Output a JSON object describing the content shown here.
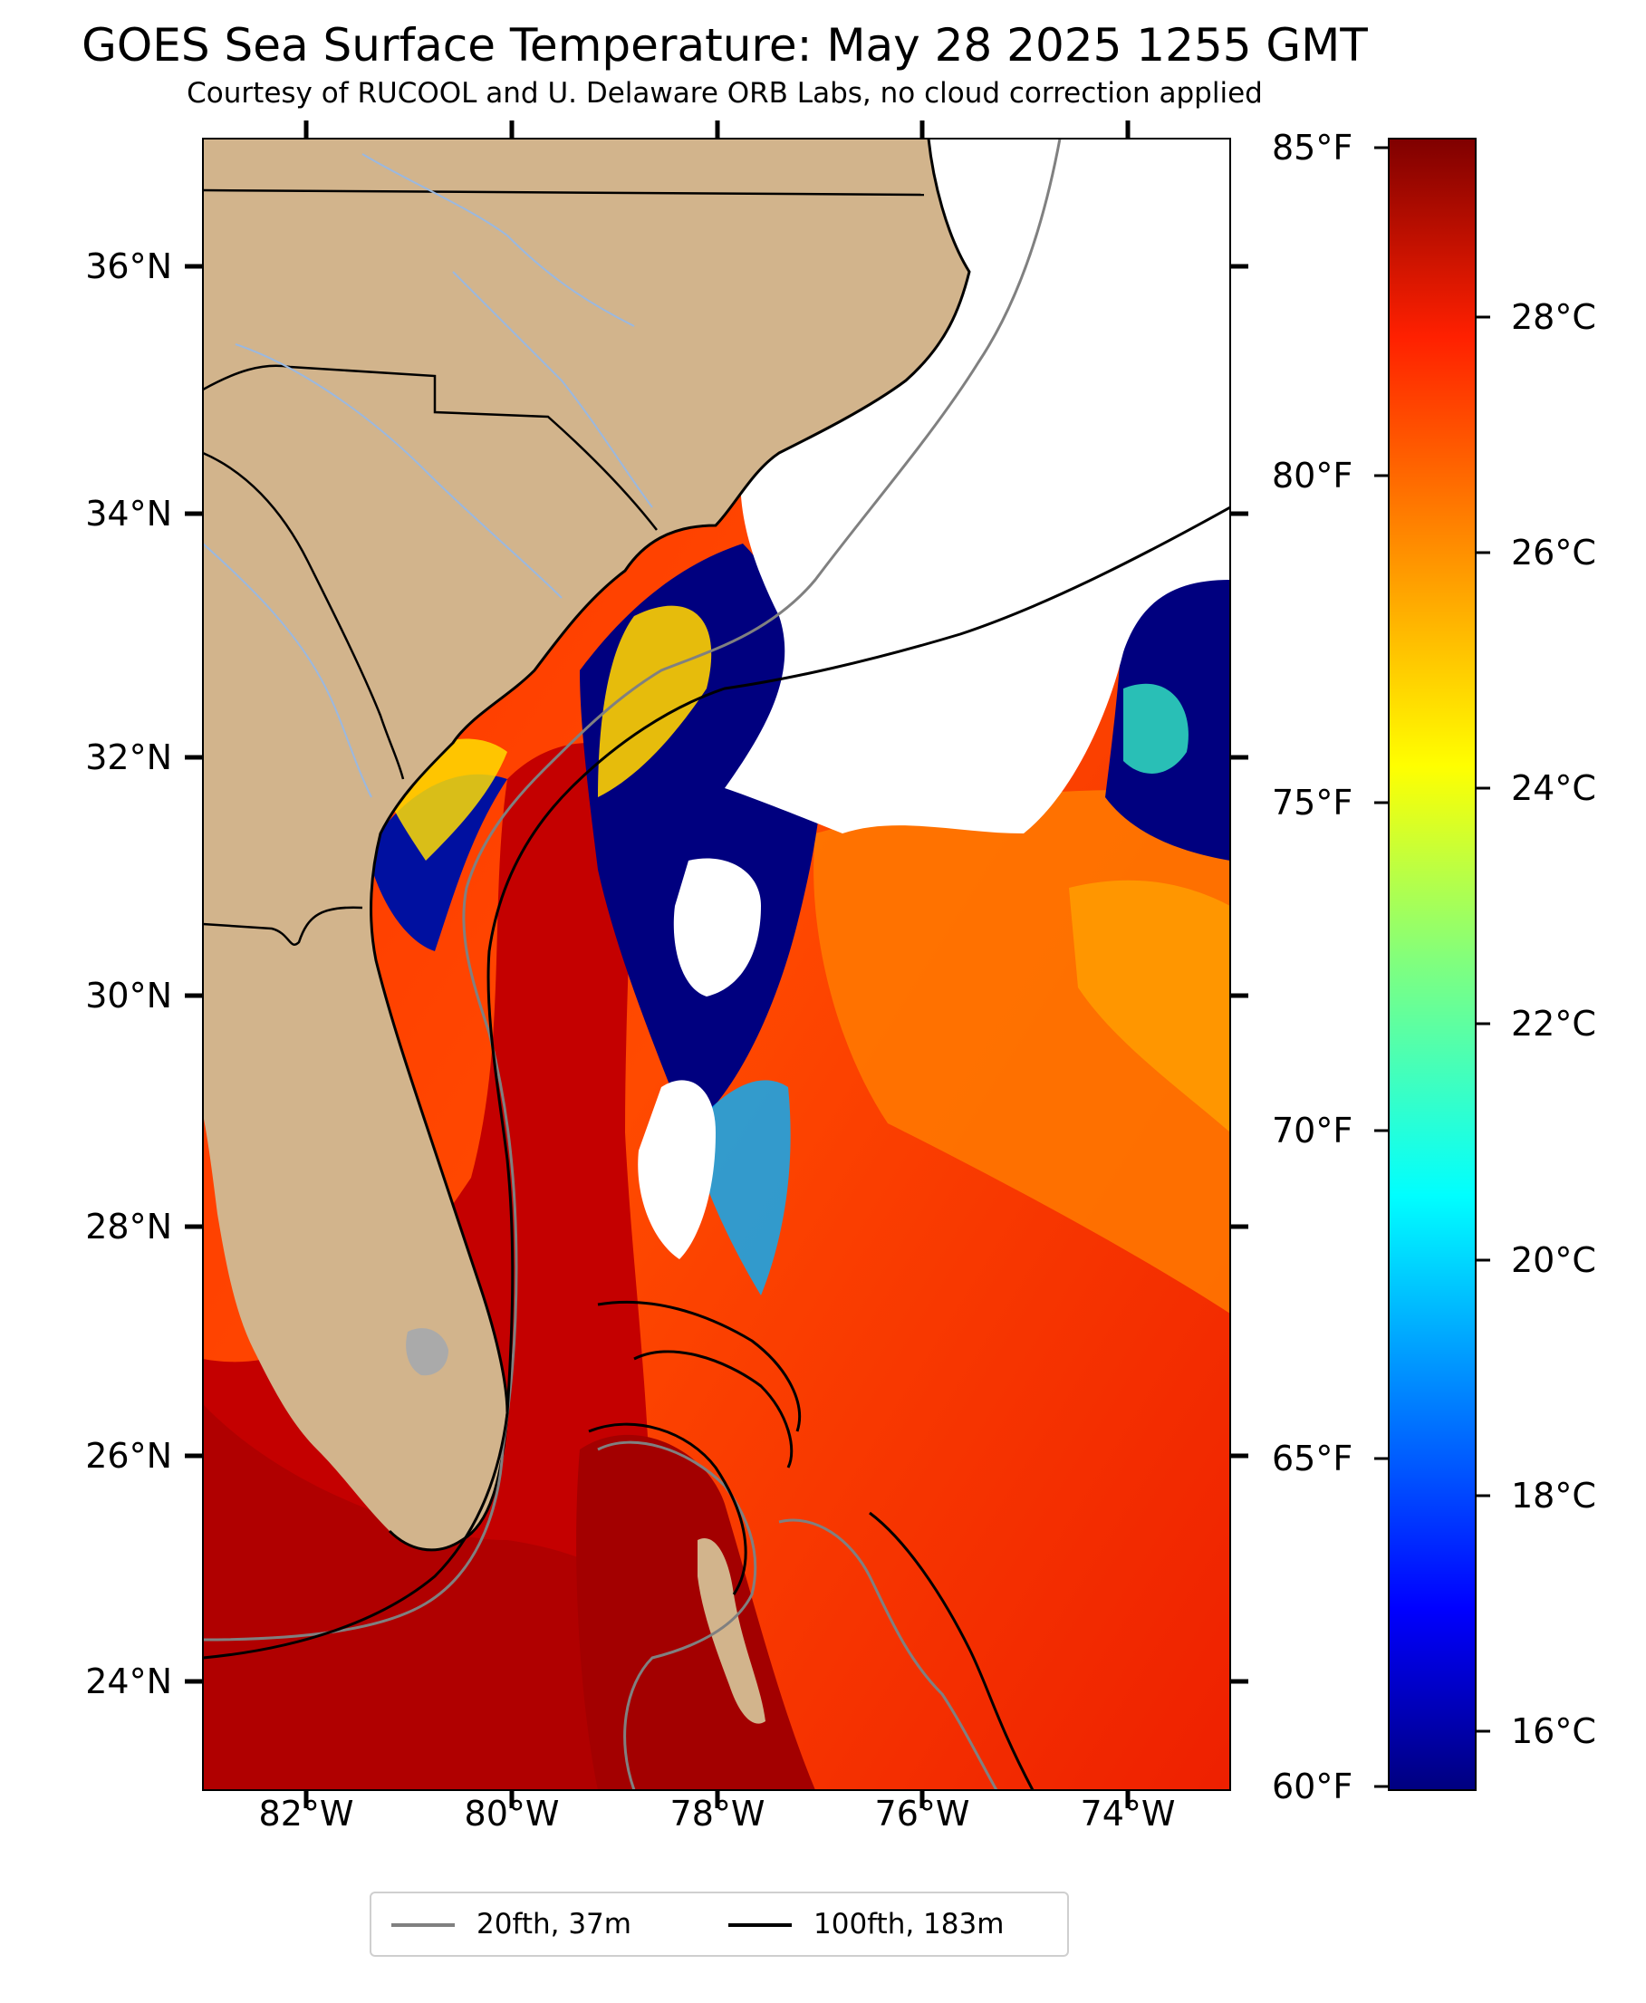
{
  "title": "GOES Sea Surface Temperature: May 28 2025 1255 GMT",
  "subtitle": "Courtesy of RUCOOL and U. Delaware ORB Labs, no cloud correction applied",
  "map": {
    "lat_ticks": [
      "36°N",
      "34°N",
      "32°N",
      "30°N",
      "28°N",
      "26°N",
      "24°N"
    ],
    "lon_ticks": [
      "82°W",
      "80°W",
      "78°W",
      "76°W",
      "74°W"
    ],
    "extent": {
      "lon_min": -83.0,
      "lon_max": -73.0,
      "lat_min": 23.0,
      "lat_max": 37.0
    },
    "colors": {
      "land": "#d2b48c",
      "no_data": "#ffffff",
      "lakes": "#aaaaaa",
      "rivers": "#9ab8e0",
      "borders": "#000000"
    }
  },
  "colorbar": {
    "fahrenheit_ticks": [
      "85°F",
      "80°F",
      "75°F",
      "70°F",
      "65°F",
      "60°F"
    ],
    "celsius_ticks": [
      "28°C",
      "26°C",
      "24°C",
      "22°C",
      "20°C",
      "18°C",
      "16°C"
    ],
    "range_c": [
      15.6,
      29.4
    ],
    "colormap": "jet"
  },
  "legend": {
    "items": [
      {
        "label": "20fth, 37m",
        "color": "#808080"
      },
      {
        "label": "100fth, 183m",
        "color": "#000000"
      }
    ]
  }
}
